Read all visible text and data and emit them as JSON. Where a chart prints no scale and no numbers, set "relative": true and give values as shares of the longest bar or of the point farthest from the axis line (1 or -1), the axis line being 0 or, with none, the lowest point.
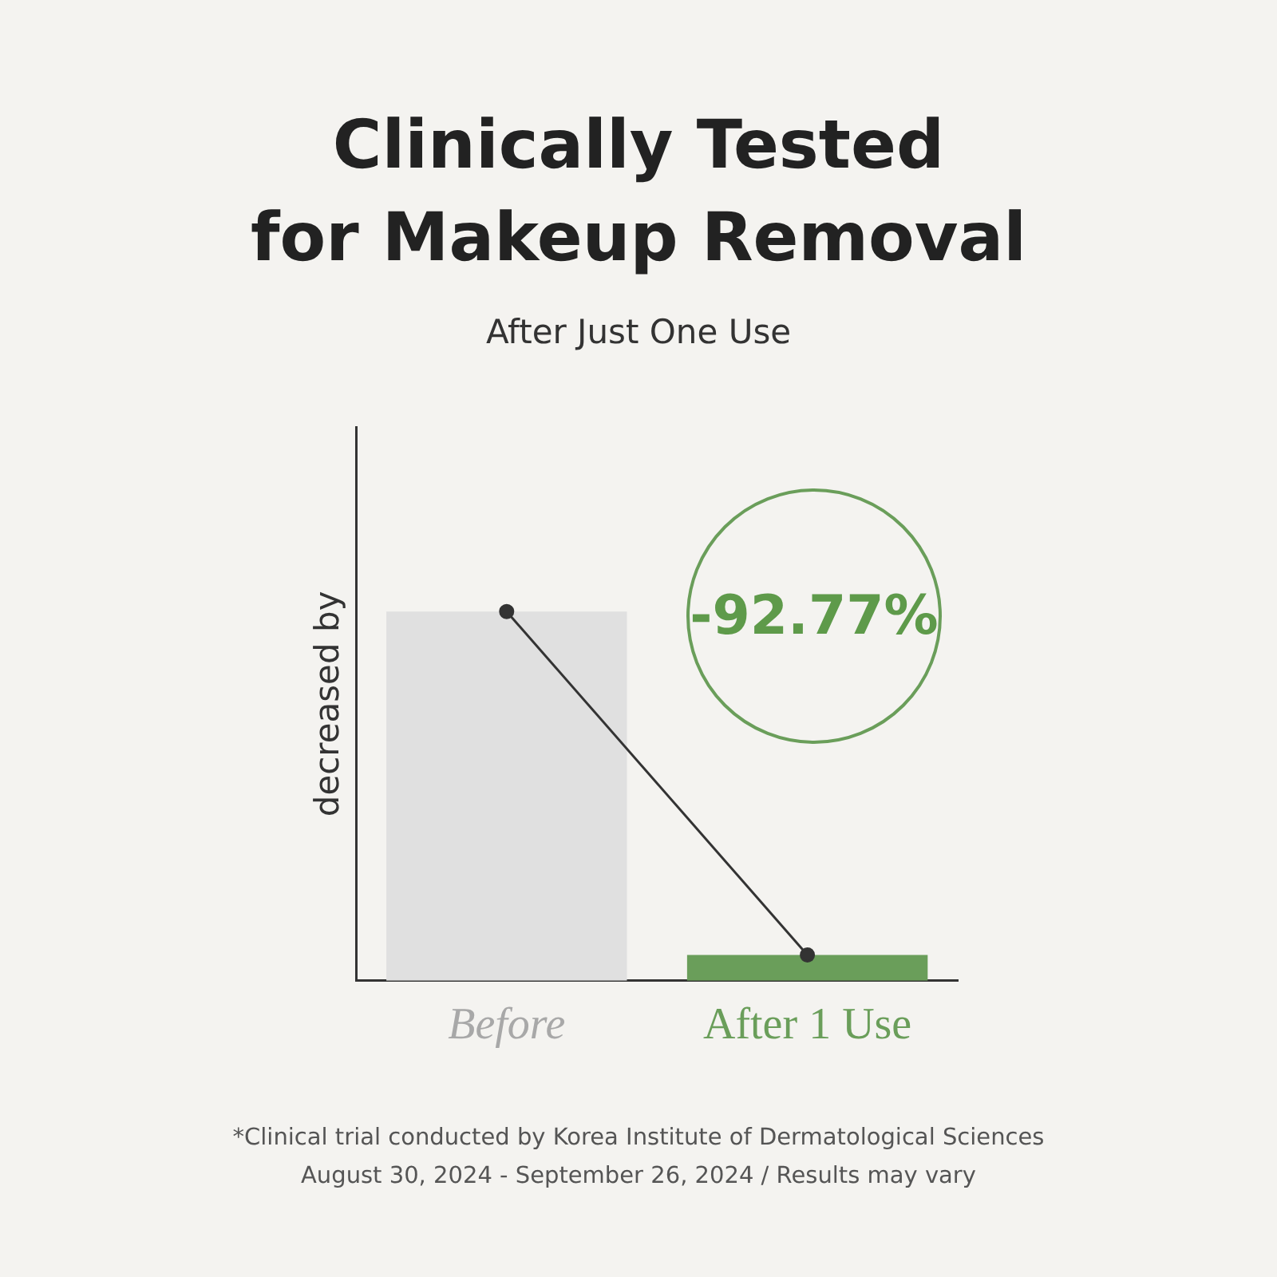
{
  "chart_data": {
    "type": "bar",
    "title": "Clinically Tested\nfor Makeup Removal",
    "subtitle": "After Just One Use",
    "ylabel": "decreased by",
    "categories": [
      "Before",
      "After 1 Use"
    ],
    "relative": true,
    "legend": false,
    "series": [
      {
        "colors": [
          "#e0e0e0",
          "#6a9e5a"
        ],
        "values": [
          1,
          0.07
        ]
      },
      {
        "type": "line",
        "color": "#333333",
        "marker": "circle",
        "values": [
          1,
          0.07
        ]
      }
    ],
    "annotations": [
      "-92.77%",
      "*Clinical trial conducted by Korea Institute of Dermatological Sciences",
      "August 30, 2024 - September 26, 2024 / Results may vary"
    ]
  }
}
